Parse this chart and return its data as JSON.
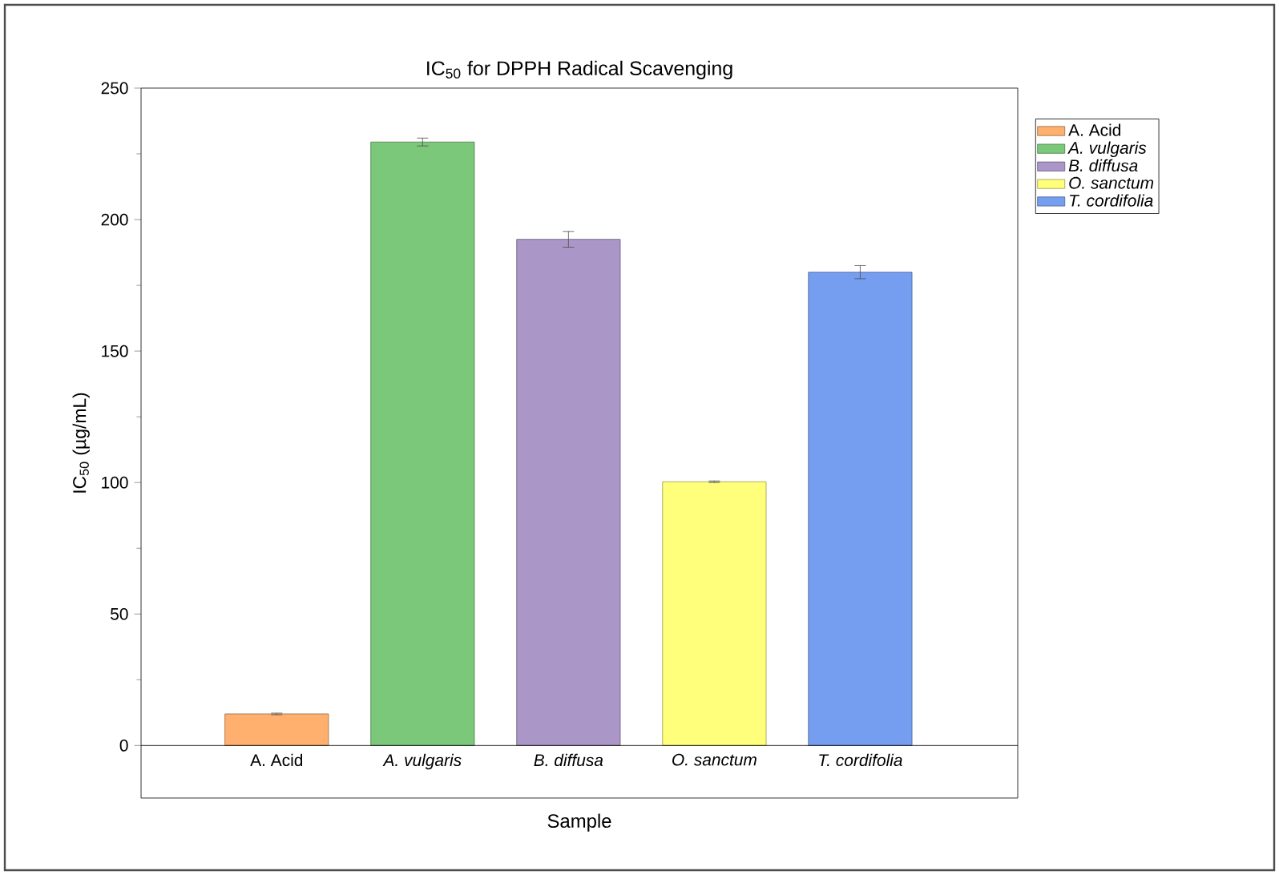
{
  "chart_data": {
    "type": "bar",
    "title": "IC$_{50}$ for DPPH Radical Scavenging",
    "xlabel": "Sample",
    "ylabel": "IC$_{50}$ (µg/mL)",
    "categories": [
      "A. Acid",
      "*A. vulgaris*",
      "*B. diffusa*",
      "*O. sanctum*",
      "*T. cordifolia*"
    ],
    "series": [
      {
        "name": "A. Acid",
        "color": "#ffb06e",
        "values": [
          12,
          null,
          null,
          null,
          null
        ],
        "errors": [
          0.3,
          null,
          null,
          null,
          null
        ]
      },
      {
        "name": "*A. vulgaris*",
        "color": "#7bc87b",
        "values": [
          null,
          229.5,
          null,
          null,
          null
        ],
        "errors": [
          null,
          1.5,
          null,
          null,
          null
        ]
      },
      {
        "name": "*B. diffusa*",
        "color": "#ab96c8",
        "values": [
          null,
          null,
          192.5,
          null,
          null
        ],
        "errors": [
          null,
          null,
          3,
          null,
          null
        ]
      },
      {
        "name": "*O. sanctum*",
        "color": "#ffff7b",
        "values": [
          null,
          null,
          null,
          100.3,
          null
        ],
        "errors": [
          null,
          null,
          null,
          0.3,
          null
        ]
      },
      {
        "name": "*T. cordifolia*",
        "color": "#769ef0",
        "values": [
          null,
          null,
          null,
          null,
          180
        ],
        "errors": [
          null,
          null,
          null,
          null,
          2.5
        ]
      }
    ],
    "ylim": [
      -20,
      250
    ],
    "yticks": [
      0,
      50,
      100,
      150,
      200,
      250
    ],
    "legend": "top right",
    "grid": false
  }
}
